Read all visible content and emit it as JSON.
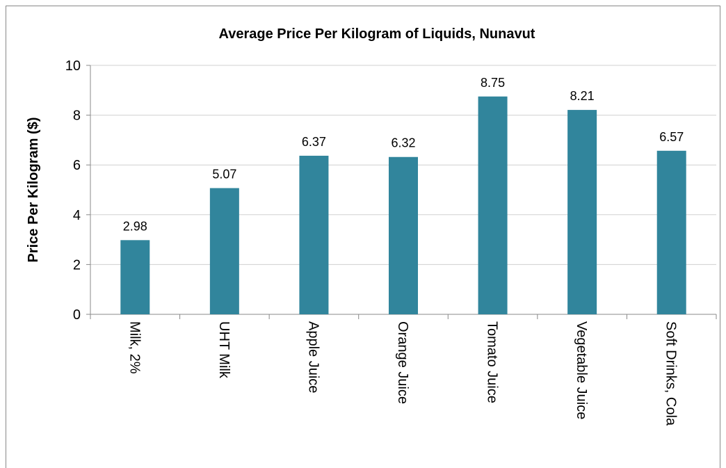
{
  "chart_data": {
    "type": "bar",
    "title": "Average Price Per Kilogram of Liquids, Nunavut",
    "y_label": "Price Per Kilogram ($)",
    "categories": [
      "Milk, 2%",
      "UHT Milk",
      "Apple Juice",
      "Orange Juice",
      "Tomato Juice",
      "Vegetable Juice",
      "Soft Drinks, Cola"
    ],
    "values": [
      2.98,
      5.07,
      6.37,
      6.32,
      8.75,
      8.21,
      6.57
    ],
    "color": "#31859c",
    "ylim": [
      0,
      10
    ],
    "yticks": [
      0,
      2,
      4,
      6,
      8,
      10
    ],
    "grid": true
  }
}
